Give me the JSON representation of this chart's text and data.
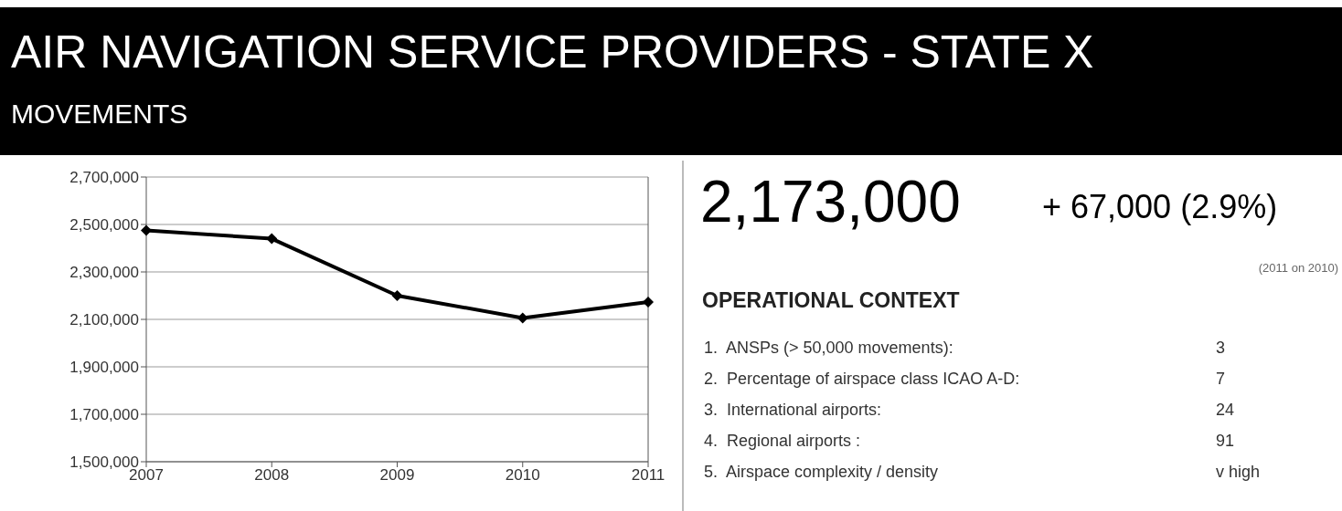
{
  "chart_data": [
    {
      "type": "line",
      "title": "AIR NAVIGATION SERVICE PROVIDERS - STATE X",
      "subtitle": "MOVEMENTS",
      "categories": [
        "2007",
        "2008",
        "2009",
        "2010",
        "2011"
      ],
      "series": [
        {
          "color": "#000000",
          "values": [
            2475000,
            2440000,
            2200000,
            2106000,
            2173000
          ]
        }
      ],
      "ylim": [
        1500000,
        2700000
      ],
      "yticks": [
        {
          "value": 1500000,
          "label": "1,500,000"
        },
        {
          "value": 1700000,
          "label": "1,700,000"
        },
        {
          "value": 1900000,
          "label": "1,900,000"
        },
        {
          "value": 2100000,
          "label": "2,100,000"
        },
        {
          "value": 2300000,
          "label": "2,300,000"
        },
        {
          "value": 2500000,
          "label": "2,500,000"
        },
        {
          "value": 2700000,
          "label": "2,700,000"
        }
      ],
      "grid": "y",
      "marker": "diamond",
      "line_style": "solid"
    },
    {
      "type": "other",
      "title": "2,173,000",
      "subtitle": "+ 67,000 (2.9%)",
      "annotations": [
        "(2011 on 2010)",
        "OPERATIONAL CONTEXT",
        "1.  ANSPs (> 50,000 movements):",
        "3",
        "2.  Percentage of airspace class ICAO A-D:",
        "7",
        "3.  International airports:",
        "24",
        "4.  Regional airports :",
        "91",
        "5.  Airspace complexity / density",
        "v high"
      ]
    }
  ]
}
